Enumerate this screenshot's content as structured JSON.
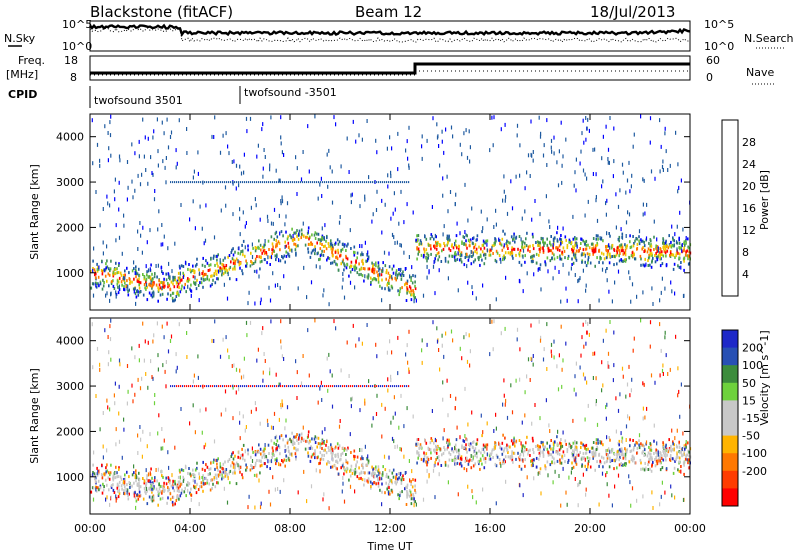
{
  "header": {
    "station": "Blackstone (fitACF)",
    "beam": "Beam 12",
    "date": "18/Jul/2013"
  },
  "labels": {
    "nsky": "N.Sky",
    "nsearch": "N.Search",
    "freq_line1": "Freq.",
    "freq_line2": "[MHz]",
    "nave": "Nave",
    "cpid": "CPID",
    "cpid_1": "twofsound 3501",
    "cpid_2": "twofsound -3501"
  },
  "noise_axis_ticks": {
    "top": "10^5",
    "bottom": "10^0"
  },
  "freq_axis_ticks": {
    "left": [
      "18",
      "8"
    ],
    "right": [
      "60",
      "0"
    ]
  },
  "colors": {
    "power_scale": [
      "#0000ff",
      "#1e5aa0",
      "#3c8c5a",
      "#64be3c",
      "#f0c800",
      "#ff7800",
      "#ff0000"
    ],
    "velocity_scale": [
      "#1e28c8",
      "#2850b4",
      "#3c8c3c",
      "#6ed23c",
      "#c8c8c8",
      "#c8c8c8",
      "#ffb400",
      "#ff7800",
      "#ff3c00",
      "#ff0000"
    ]
  },
  "chart_data": [
    {
      "type": "heatmap",
      "name": "power_panel",
      "ylabel": "Slant Range [km]",
      "yticks": [
        "1000",
        "2000",
        "3000",
        "4000"
      ],
      "ylim": [
        180,
        4500
      ],
      "xlim": [
        "00:00",
        "24:00"
      ],
      "colorbar": {
        "label": "Power [dB]",
        "range": [
          0,
          32
        ],
        "ticks": [
          "4",
          "8",
          "12",
          "16",
          "20",
          "24",
          "28"
        ]
      },
      "echo_bands": [
        {
          "t_start": 0.0,
          "t_end": 3.5,
          "range_start_km": 1000,
          "range_end_km": 650
        },
        {
          "t_start": 3.5,
          "t_end": 8.5,
          "range_start_km": 800,
          "range_end_km": 1750
        },
        {
          "t_start": 8.5,
          "t_end": 13.0,
          "range_start_km": 1750,
          "range_end_km": 600
        },
        {
          "t_start": 13.0,
          "t_end": 24.0,
          "range_start_km": 1550,
          "range_end_km": 1450
        }
      ]
    },
    {
      "type": "heatmap",
      "name": "velocity_panel",
      "xlabel": "Time UT",
      "ylabel": "Slant Range [km]",
      "yticks": [
        "1000",
        "2000",
        "3000",
        "4000"
      ],
      "ylim": [
        180,
        4500
      ],
      "xticks": [
        "00:00",
        "04:00",
        "08:00",
        "12:00",
        "16:00",
        "20:00",
        "00:00"
      ],
      "colorbar": {
        "label": "Velocity [m s^-1]",
        "range": [
          -250,
          250
        ],
        "ticks": [
          "200",
          "100",
          "50",
          "15",
          "-15",
          "-50",
          "-100",
          "-200"
        ]
      }
    }
  ]
}
